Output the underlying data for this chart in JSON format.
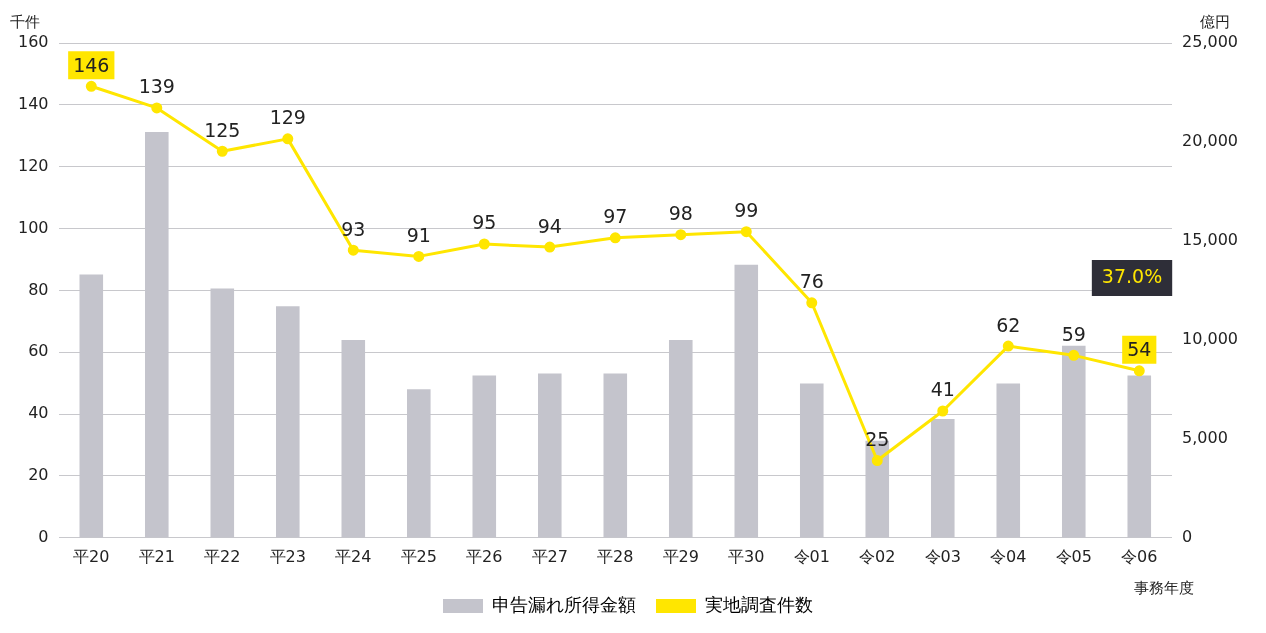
{
  "chart_data": {
    "type": "bar",
    "ylabel": "千件",
    "y2label": "億円",
    "xlabel": "事務年度",
    "categories": [
      "平20",
      "平21",
      "平22",
      "平23",
      "平24",
      "平25",
      "平26",
      "平27",
      "平28",
      "平29",
      "平30",
      "令01",
      "令02",
      "令03",
      "令04",
      "令05",
      "令06"
    ],
    "series": [
      {
        "name": "申告漏れ所得金額",
        "axis": "y2",
        "color": "#c4c4cc",
        "values": [
          13300,
          20500,
          12600,
          11700,
          10000,
          7500,
          8200,
          8300,
          8300,
          10000,
          13800,
          7800,
          4900,
          6000,
          7800,
          9700,
          8200
        ]
      },
      {
        "name": "実地調査件数",
        "type": "line",
        "axis": "y",
        "color": "#ffe600",
        "marker": "circle",
        "values": [
          146,
          139,
          125,
          129,
          93,
          91,
          95,
          94,
          97,
          98,
          99,
          76,
          25,
          41,
          62,
          59,
          54
        ],
        "value_labels": [
          "146",
          "139",
          "125",
          "129",
          "93",
          "91",
          "95",
          "94",
          "97",
          "98",
          "99",
          "76",
          "25",
          "41",
          "62",
          "59",
          "54"
        ]
      }
    ],
    "ylim": [
      0,
      160
    ],
    "yticks": [
      0,
      20,
      40,
      60,
      80,
      100,
      120,
      140,
      160
    ],
    "y2lim": [
      0,
      25000
    ],
    "y2ticks": [
      {
        "value": 0,
        "label": "0"
      },
      {
        "value": 5000,
        "label": "5,000"
      },
      {
        "value": 10000,
        "label": "10,000"
      },
      {
        "value": 15000,
        "label": "15,000"
      },
      {
        "value": 20000,
        "label": "20,000"
      },
      {
        "value": 25000,
        "label": "25,000"
      }
    ],
    "grid": "y",
    "legend": "bottom",
    "annotations": [
      "37.0%"
    ]
  }
}
